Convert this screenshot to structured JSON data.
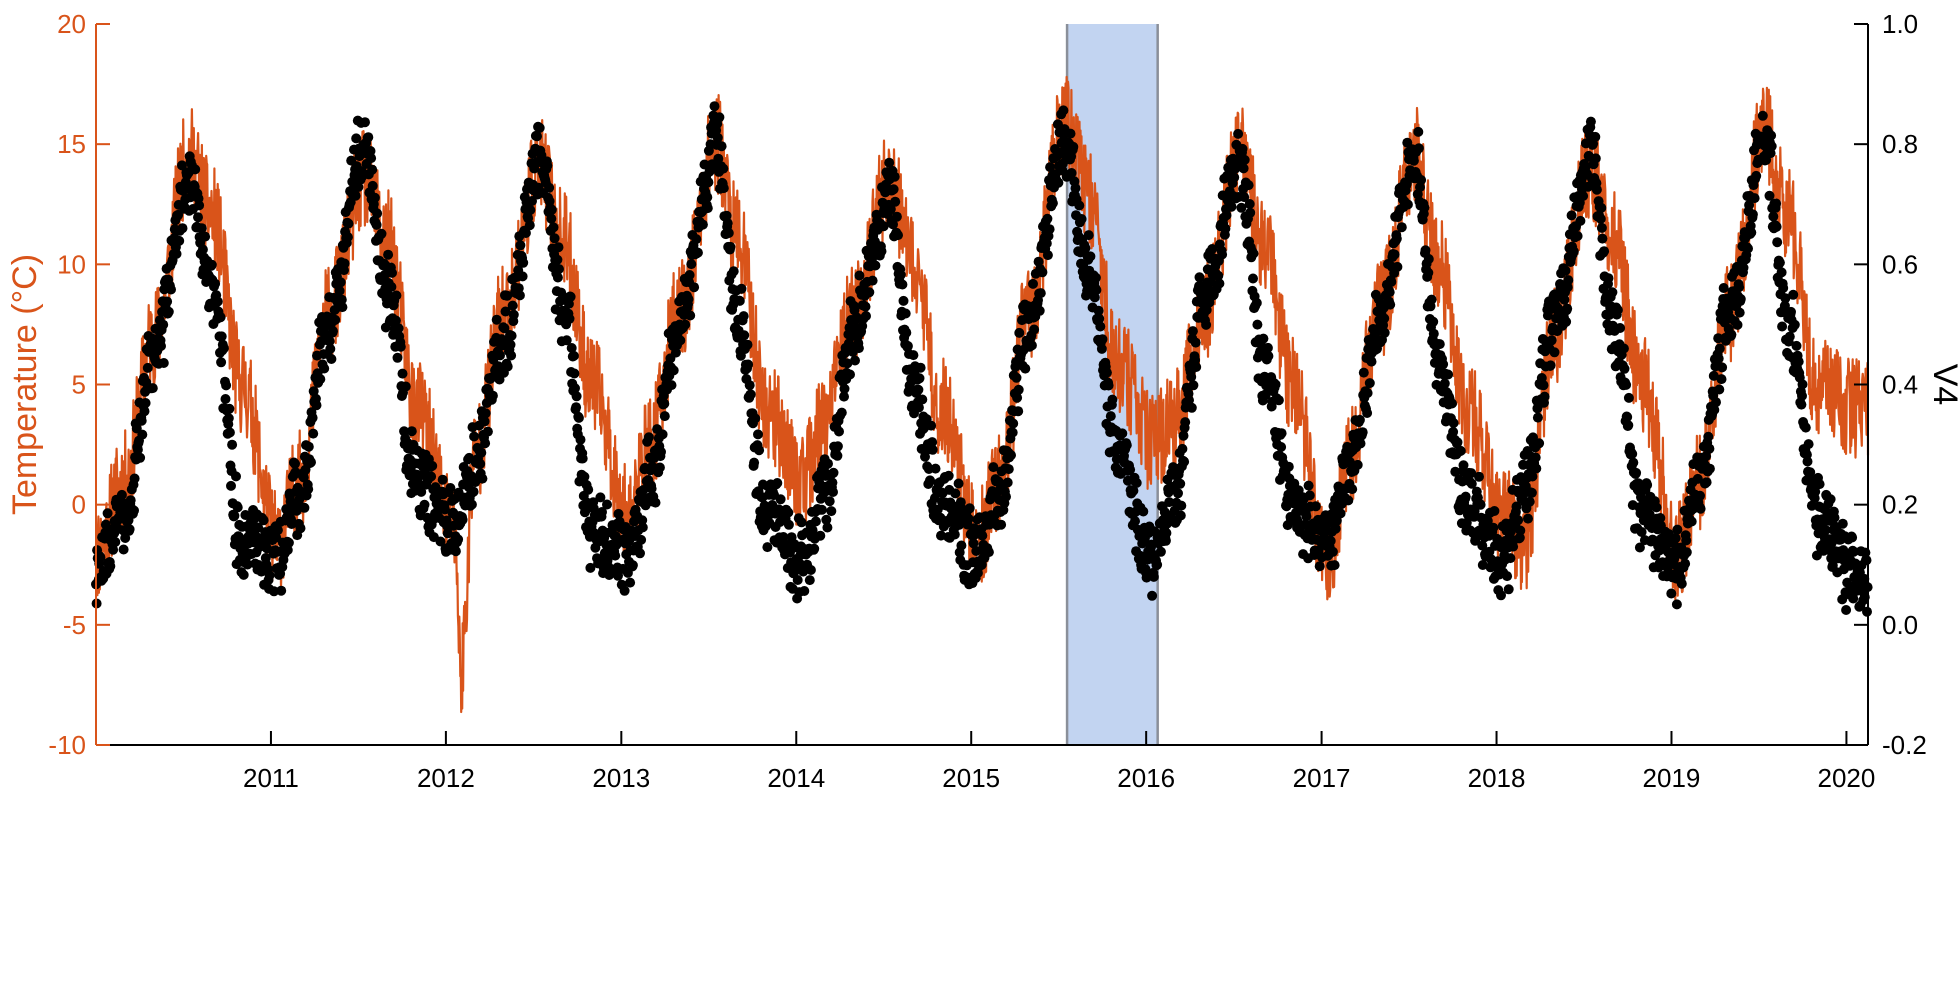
{
  "chart_data": {
    "type": "line",
    "title": "",
    "xlabel": "",
    "ylabel": "Temperature (°C)",
    "ylabel_right": "V4",
    "xlim": [
      "2010-01-01",
      "2020-02-15"
    ],
    "ylim_left": [
      -10,
      20
    ],
    "ylim_right": [
      -0.2,
      1.0
    ],
    "yticks_left": [
      "-10",
      "-5",
      "0",
      "5",
      "10",
      "15",
      "20"
    ],
    "yticks_right": [
      "-0.2",
      "0.0",
      "0.2",
      "0.4",
      "0.6",
      "0.8",
      "1.0"
    ],
    "xticks": [
      "2011",
      "2012",
      "2013",
      "2014",
      "2015",
      "2016",
      "2017",
      "2018",
      "2019",
      "2020"
    ],
    "grid": false,
    "legend": "none",
    "highlight": {
      "start": "2015-07-20",
      "end": "2016-01-25",
      "color": "#b7cdef",
      "edge_color": "#8a8f99"
    },
    "colors": {
      "temperature": "#d9541a",
      "v4": "#000000",
      "axis_left": "#d9541a",
      "axis_right": "#000000"
    },
    "series": [
      {
        "axis": "left",
        "type": "line",
        "x": [
          "2010-01-01",
          "2010-03-01",
          "2010-05-01",
          "2010-07-15",
          "2010-09-01",
          "2010-11-01",
          "2011-01-15",
          "2011-03-01",
          "2011-05-01",
          "2011-07-15",
          "2011-09-01",
          "2011-11-01",
          "2012-01-20",
          "2012-02-01",
          "2012-03-01",
          "2012-05-01",
          "2012-07-15",
          "2012-09-01",
          "2012-11-01",
          "2013-01-15",
          "2013-03-01",
          "2013-05-01",
          "2013-07-20",
          "2013-09-01",
          "2013-11-01",
          "2014-01-15",
          "2014-03-01",
          "2014-05-01",
          "2014-07-15",
          "2014-09-01",
          "2014-11-01",
          "2015-01-15",
          "2015-03-01",
          "2015-05-01",
          "2015-07-15",
          "2015-09-01",
          "2015-11-01",
          "2016-01-15",
          "2016-03-01",
          "2016-05-01",
          "2016-07-15",
          "2016-09-01",
          "2016-11-01",
          "2017-01-15",
          "2017-03-01",
          "2017-05-01",
          "2017-07-15",
          "2017-09-01",
          "2017-11-01",
          "2018-01-15",
          "2018-03-01",
          "2018-05-01",
          "2018-07-15",
          "2018-09-01",
          "2018-11-01",
          "2019-01-15",
          "2019-03-01",
          "2019-05-01",
          "2019-07-15",
          "2019-09-01",
          "2019-11-01",
          "2020-01-15"
        ],
        "y": [
          -2,
          1,
          7,
          14.5,
          12,
          5,
          -1.5,
          1,
          8,
          13.5,
          11,
          4,
          -1,
          -7,
          2,
          8,
          14,
          11,
          5,
          -0.5,
          2.5,
          8,
          15,
          11,
          4,
          1,
          3.5,
          8,
          13.5,
          10,
          4,
          -1.5,
          1,
          8,
          16,
          13,
          6,
          2.5,
          3.5,
          8,
          14.5,
          11,
          5,
          -2.5,
          2,
          8,
          14.5,
          10,
          4,
          -0.5,
          -1.5,
          7,
          14,
          11,
          5,
          -2,
          1,
          8,
          15.5,
          12,
          5,
          4
        ]
      },
      {
        "axis": "right",
        "type": "scatter",
        "x": [
          "2010-01-01",
          "2010-03-01",
          "2010-05-01",
          "2010-07-15",
          "2010-09-01",
          "2010-11-01",
          "2011-01-15",
          "2011-03-01",
          "2011-05-01",
          "2011-07-15",
          "2011-09-01",
          "2011-11-01",
          "2012-01-15",
          "2012-03-01",
          "2012-05-01",
          "2012-07-15",
          "2012-09-01",
          "2012-11-01",
          "2013-01-15",
          "2013-03-01",
          "2013-05-01",
          "2013-07-20",
          "2013-09-01",
          "2013-11-01",
          "2014-01-15",
          "2014-03-01",
          "2014-05-01",
          "2014-07-15",
          "2014-09-01",
          "2014-11-01",
          "2015-01-15",
          "2015-03-01",
          "2015-05-01",
          "2015-07-15",
          "2015-09-01",
          "2015-11-01",
          "2016-01-15",
          "2016-03-01",
          "2016-05-01",
          "2016-07-15",
          "2016-09-01",
          "2016-11-01",
          "2017-01-15",
          "2017-03-01",
          "2017-05-01",
          "2017-07-15",
          "2017-09-01",
          "2017-11-01",
          "2018-01-15",
          "2018-03-01",
          "2018-05-01",
          "2018-07-15",
          "2018-09-01",
          "2018-11-01",
          "2019-01-15",
          "2019-03-01",
          "2019-05-01",
          "2019-07-15",
          "2019-09-01",
          "2019-11-01",
          "2020-01-15"
        ],
        "y": [
          0.09,
          0.18,
          0.45,
          0.74,
          0.56,
          0.14,
          0.12,
          0.22,
          0.5,
          0.8,
          0.56,
          0.24,
          0.16,
          0.26,
          0.48,
          0.78,
          0.54,
          0.16,
          0.12,
          0.24,
          0.5,
          0.8,
          0.5,
          0.18,
          0.11,
          0.22,
          0.5,
          0.72,
          0.4,
          0.2,
          0.12,
          0.22,
          0.5,
          0.82,
          0.6,
          0.3,
          0.1,
          0.22,
          0.55,
          0.76,
          0.44,
          0.2,
          0.14,
          0.26,
          0.5,
          0.78,
          0.44,
          0.2,
          0.11,
          0.22,
          0.5,
          0.78,
          0.5,
          0.18,
          0.1,
          0.24,
          0.52,
          0.8,
          0.5,
          0.18,
          0.08
        ]
      }
    ]
  }
}
